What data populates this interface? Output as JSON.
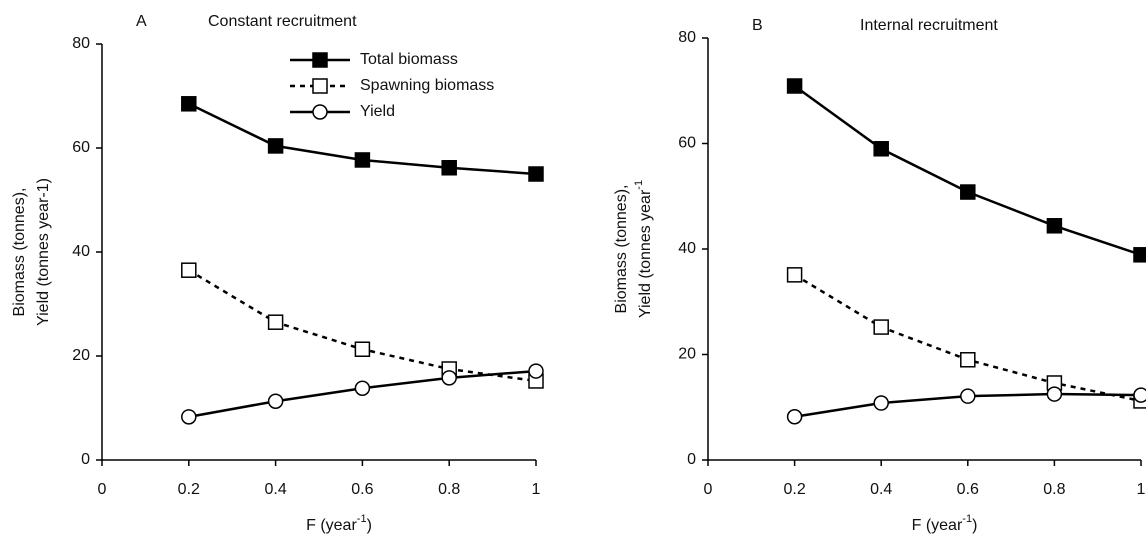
{
  "chart_data": [
    {
      "type": "line",
      "panel": "A",
      "title": "Constant recruitment",
      "y_label_1": "Biomass (tonnes),",
      "y_label_2": "Yield (tonnes year-1)",
      "x_label": "F (year",
      "x_label_sup": "-1",
      "x_label_end": ")",
      "x": [
        0.2,
        0.4,
        0.6,
        0.8,
        1
      ],
      "xlim": [
        0,
        1
      ],
      "xticks": [
        0,
        0.2,
        0.4,
        0.6,
        0.8,
        1
      ],
      "ylim": [
        0,
        80
      ],
      "yticks": [
        0,
        20,
        40,
        60,
        80
      ],
      "legend": true,
      "series": [
        {
          "name": "Total biomass",
          "color": "#000000",
          "marker": "square",
          "marker_fill": "#000000",
          "dashed": false,
          "values": [
            68.5,
            60.4,
            57.7,
            56.2,
            55
          ]
        },
        {
          "name": "Spawning biomass",
          "color": "#000000",
          "marker": "square",
          "marker_fill": "#ffffff",
          "dashed": true,
          "values": [
            36.5,
            26.5,
            21.3,
            17.5,
            15.2
          ]
        },
        {
          "name": "Yield",
          "color": "#000000",
          "marker": "circle",
          "marker_fill": "#ffffff",
          "dashed": false,
          "values": [
            8.3,
            11.3,
            13.8,
            15.8,
            17.1
          ]
        }
      ]
    },
    {
      "type": "line",
      "panel": "B",
      "title": "Internal recruitment",
      "y_label_1": "Biomass (tonnes),",
      "y_label_2": "Yield (tonnes year",
      "y_label_2_sup": "-1",
      "x_label": "F (year",
      "x_label_sup": "-1",
      "x_label_end": ")",
      "x": [
        0.2,
        0.4,
        0.6,
        0.8,
        1
      ],
      "xlim": [
        0,
        1
      ],
      "xticks": [
        0,
        0.2,
        0.4,
        0.6,
        0.8,
        1
      ],
      "ylim": [
        0,
        80
      ],
      "yticks": [
        0,
        20,
        40,
        60,
        80
      ],
      "legend": false,
      "series": [
        {
          "name": "Total biomass",
          "color": "#000000",
          "marker": "square",
          "marker_fill": "#000000",
          "dashed": false,
          "values": [
            70.9,
            59,
            50.8,
            44.4,
            38.9
          ]
        },
        {
          "name": "Spawning biomass",
          "color": "#000000",
          "marker": "square",
          "marker_fill": "#ffffff",
          "dashed": true,
          "values": [
            35.1,
            25.2,
            19,
            14.6,
            11.2
          ]
        },
        {
          "name": "Yield",
          "color": "#000000",
          "marker": "circle",
          "marker_fill": "#ffffff",
          "dashed": false,
          "values": [
            8.2,
            10.8,
            12.1,
            12.5,
            12.3
          ]
        }
      ]
    }
  ]
}
